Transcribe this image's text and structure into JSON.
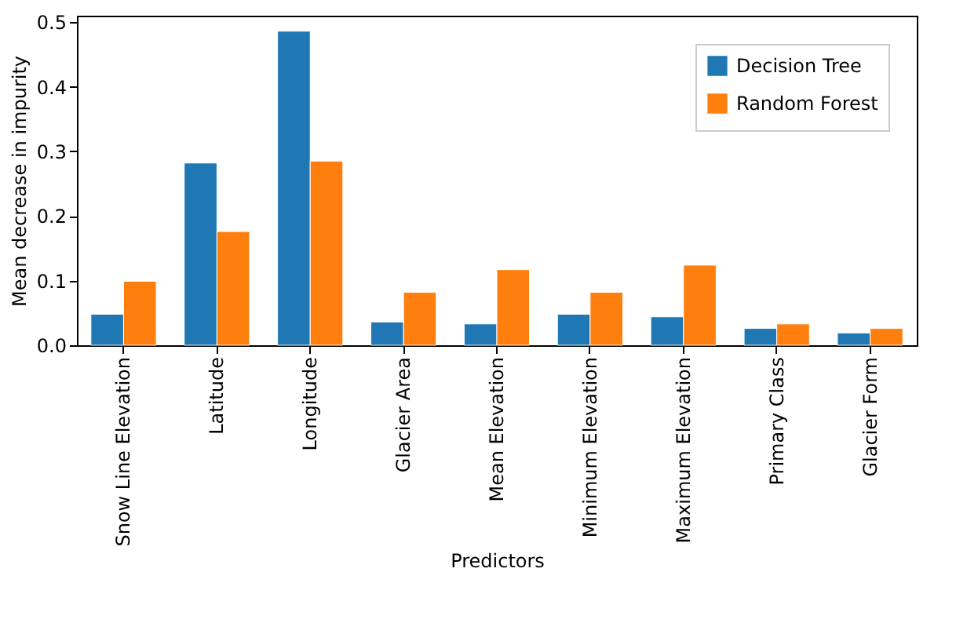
{
  "chart_data": {
    "type": "bar",
    "xlabel": "Predictors",
    "ylabel": "Mean decrease in impurity",
    "categories": [
      "Snow Line Elevation",
      "Latitude",
      "Longitude",
      "Glacier Area",
      "Mean Elevation",
      "Minimum Elevation",
      "Maximum Elevation",
      "Primary Class",
      "Glacier Form"
    ],
    "series": [
      {
        "name": "Decision Tree",
        "color": "#1f77b4",
        "values": [
          0.048,
          0.282,
          0.486,
          0.036,
          0.033,
          0.048,
          0.044,
          0.026,
          0.019
        ]
      },
      {
        "name": "Random Forest",
        "color": "#ff7f0e",
        "values": [
          0.099,
          0.176,
          0.285,
          0.082,
          0.117,
          0.082,
          0.124,
          0.033,
          0.026
        ]
      }
    ],
    "ylim": [
      0,
      0.51
    ],
    "yticks": [
      {
        "value": 0,
        "label": "0.0"
      },
      0.1,
      0.2,
      0.3,
      0.4,
      0.5
    ],
    "legend": "top right",
    "grid": false
  }
}
